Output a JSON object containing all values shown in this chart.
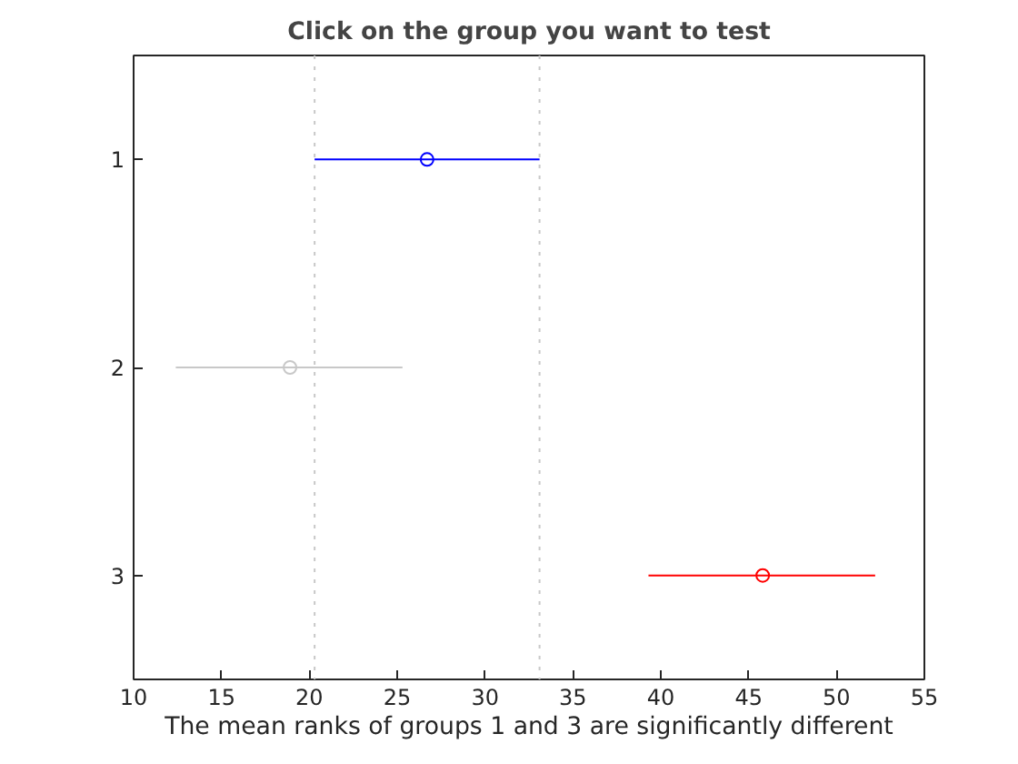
{
  "chart_data": {
    "type": "scatter",
    "orientation": "horizontal",
    "title": "Click on the group you want to test",
    "xlabel": "The mean ranks of groups 1 and 3 are significantly different",
    "categories": [
      "1",
      "2",
      "3"
    ],
    "values": [
      26.7,
      18.9,
      45.8
    ],
    "errors": [
      [
        20.3,
        33.1
      ],
      [
        12.4,
        25.3
      ],
      [
        39.3,
        52.2
      ]
    ],
    "colors": [
      "#0000ff",
      "#c8c8c8",
      "#ff0000"
    ],
    "xlim": [
      10,
      55
    ],
    "xticks": [
      10,
      15,
      20,
      25,
      30,
      35,
      40,
      45,
      50,
      55
    ],
    "ref_lines": [
      {
        "axis": "x",
        "value": 20.3,
        "label": null,
        "color": "#c8c8c8",
        "line_style": "dotted"
      },
      {
        "axis": "x",
        "value": 33.1,
        "label": null,
        "color": "#c8c8c8",
        "line_style": "dotted"
      }
    ],
    "marker": "circle",
    "grid": false
  }
}
